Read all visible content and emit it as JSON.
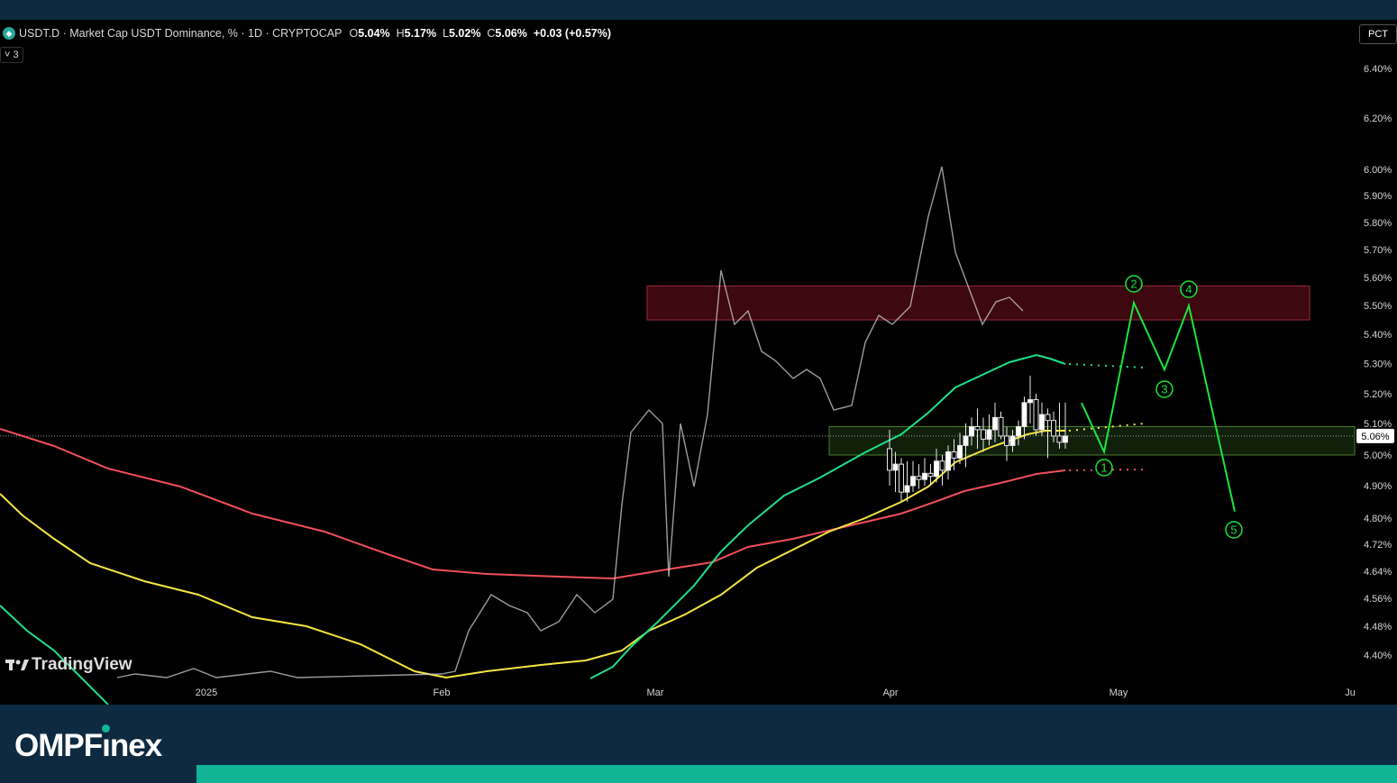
{
  "header": {
    "symbol": "USDT.D",
    "title": "Market Cap USDT Dominance, % · 1D · CRYPTOCAP",
    "open_key": "O",
    "open": "5.04%",
    "high_key": "H",
    "high": "5.17%",
    "low_key": "L",
    "low": "5.02%",
    "close_key": "C",
    "close": "5.06%",
    "change": "+0.03 (+0.57%)",
    "indicator_toggle": "˅ 3",
    "scale_mode": "PCT",
    "symbol_icon": "tether-icon"
  },
  "watermark": "TradingView",
  "brand": {
    "part1": "OMPF",
    "part2": "nex"
  },
  "colors": {
    "background": "#000000",
    "frame": "#0d2a40",
    "accent": "#12b497",
    "ma_red": "#f0505a",
    "ma_yellow": "#f5e642",
    "ma_green": "#1ee08a",
    "projection": "#19e63c",
    "resistance_zone": "#4a0a12",
    "support_zone": "#12250d"
  },
  "chart_data": {
    "type": "candlestick",
    "title": "USDT.D · Market Cap USDT Dominance, % · 1D · CRYPTOCAP",
    "y_scale": "log",
    "ylim": [
      4.36,
      6.6
    ],
    "y_ticks": [
      "6.40%",
      "6.20%",
      "6.00%",
      "5.90%",
      "5.80%",
      "5.70%",
      "5.60%",
      "5.50%",
      "5.40%",
      "5.30%",
      "5.20%",
      "5.10%",
      "5.00%",
      "4.90%",
      "4.80%",
      "4.72%",
      "4.64%",
      "4.56%",
      "4.48%",
      "4.40%"
    ],
    "x_ticks": [
      "2025",
      "Feb",
      "Mar",
      "Apr",
      "May",
      "Ju"
    ],
    "last_price": "5.06%",
    "zones": [
      {
        "name": "resistance",
        "from": 5.45,
        "to": 5.57
      },
      {
        "name": "support",
        "from": 5.0,
        "to": 5.09
      }
    ],
    "candles": [
      [
        5.02,
        4.95,
        5.08,
        4.9
      ],
      [
        4.95,
        4.97,
        5.01,
        4.88
      ],
      [
        4.97,
        4.88,
        4.99,
        4.85
      ],
      [
        4.88,
        4.9,
        4.98,
        4.85
      ],
      [
        4.9,
        4.93,
        4.98,
        4.88
      ],
      [
        4.93,
        4.92,
        4.97,
        4.89
      ],
      [
        4.92,
        4.94,
        4.99,
        4.9
      ],
      [
        4.94,
        4.93,
        4.97,
        4.9
      ],
      [
        4.93,
        4.98,
        5.02,
        4.91
      ],
      [
        4.98,
        4.95,
        5.0,
        4.9
      ],
      [
        4.95,
        5.01,
        5.03,
        4.92
      ],
      [
        5.01,
        4.99,
        5.05,
        4.95
      ],
      [
        4.99,
        5.03,
        5.07,
        4.97
      ],
      [
        5.03,
        5.06,
        5.1,
        4.96
      ],
      [
        5.06,
        5.09,
        5.12,
        5.03
      ],
      [
        5.09,
        5.08,
        5.15,
        5.02
      ],
      [
        5.08,
        5.05,
        5.12,
        5.01
      ],
      [
        5.05,
        5.08,
        5.13,
        5.03
      ],
      [
        5.08,
        5.12,
        5.17,
        5.04
      ],
      [
        5.12,
        5.06,
        5.14,
        5.05
      ],
      [
        5.06,
        5.03,
        5.09,
        4.98
      ],
      [
        5.03,
        5.06,
        5.08,
        5.01
      ],
      [
        5.06,
        5.09,
        5.11,
        5.03
      ],
      [
        5.09,
        5.17,
        5.19,
        5.05
      ],
      [
        5.17,
        5.18,
        5.26,
        5.1
      ],
      [
        5.18,
        5.08,
        5.2,
        5.06
      ],
      [
        5.08,
        5.13,
        5.17,
        5.06
      ],
      [
        5.13,
        5.11,
        5.15,
        4.99
      ],
      [
        5.11,
        5.06,
        5.14,
        5.04
      ],
      [
        5.06,
        5.04,
        5.17,
        5.02
      ],
      [
        5.04,
        5.06,
        5.17,
        5.02
      ]
    ],
    "moving_averages": [
      {
        "name": "MA green",
        "color": "#1ee08a"
      },
      {
        "name": "MA yellow",
        "color": "#f5e642"
      },
      {
        "name": "MA red",
        "color": "#f0505a"
      }
    ],
    "wave_projection": {
      "labels": [
        "1",
        "2",
        "3",
        "4",
        "5"
      ],
      "values": [
        5.01,
        5.51,
        5.28,
        5.5,
        4.82
      ]
    }
  }
}
